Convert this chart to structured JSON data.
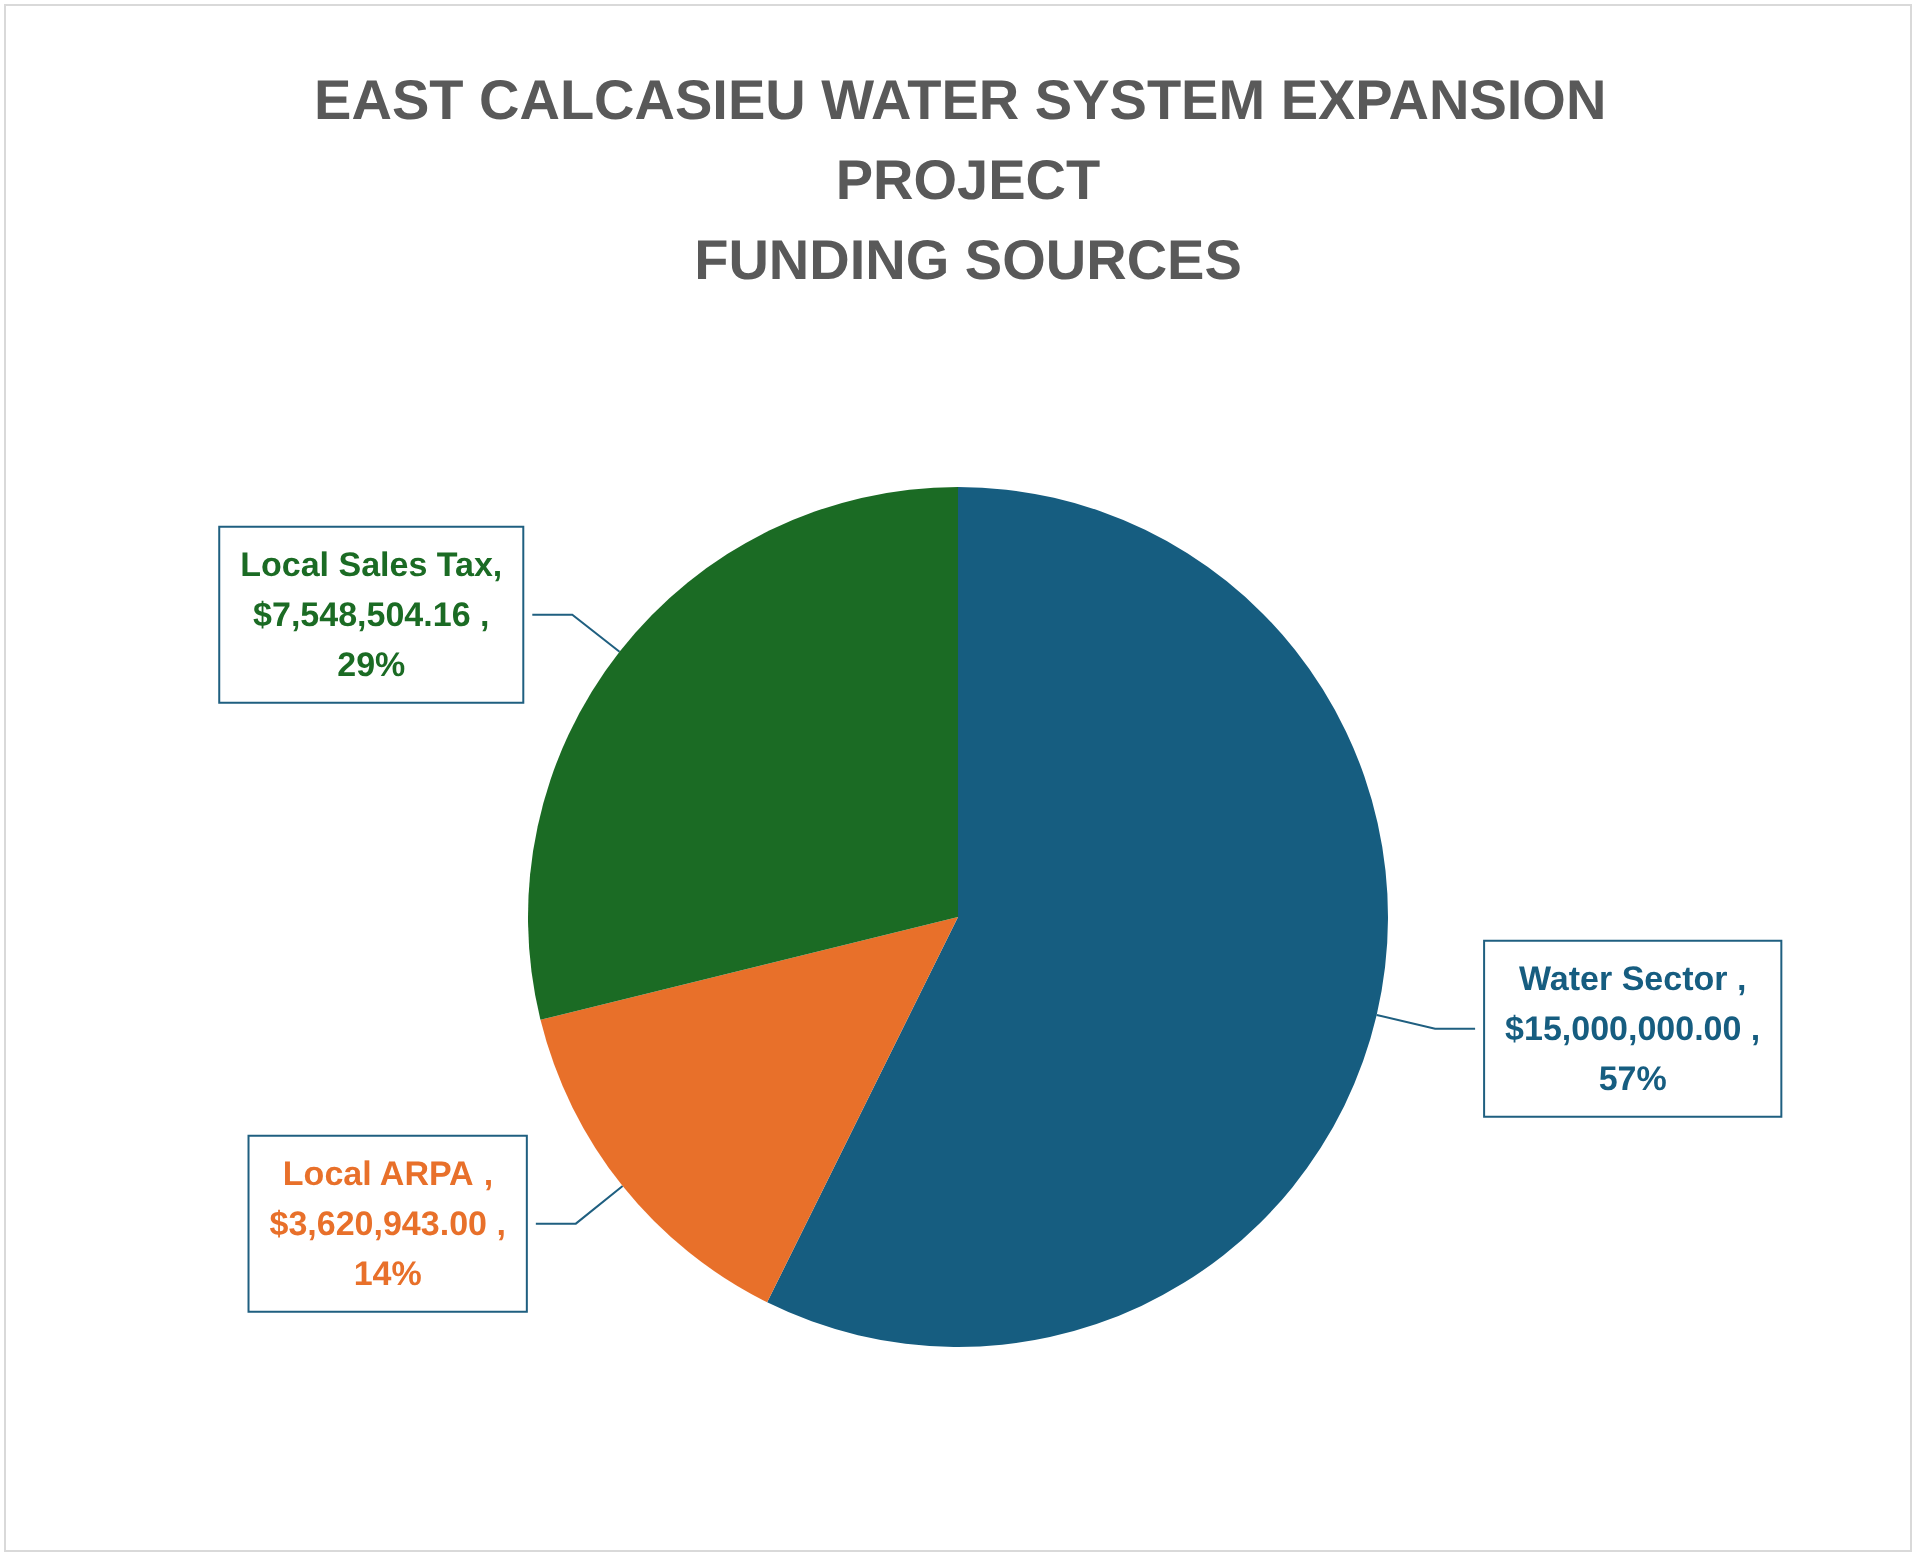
{
  "chart_data": {
    "type": "pie",
    "title": "EAST CALCASIEU WATER SYSTEM EXPANSION PROJECT\nFUNDING SOURCES",
    "categories": [
      "Water Sector",
      "Local ARPA",
      "Local Sales Tax"
    ],
    "values": [
      15000000,
      3620943,
      7548504.16
    ],
    "colors": [
      "#165d80",
      "#e8702a",
      "#1b6b24"
    ],
    "value_labels": [
      " , $15,000,000.00 , 57%",
      " , $3,620,943.00 , 14%",
      ", $7,548,504.16 , 29%"
    ],
    "legend": false
  }
}
